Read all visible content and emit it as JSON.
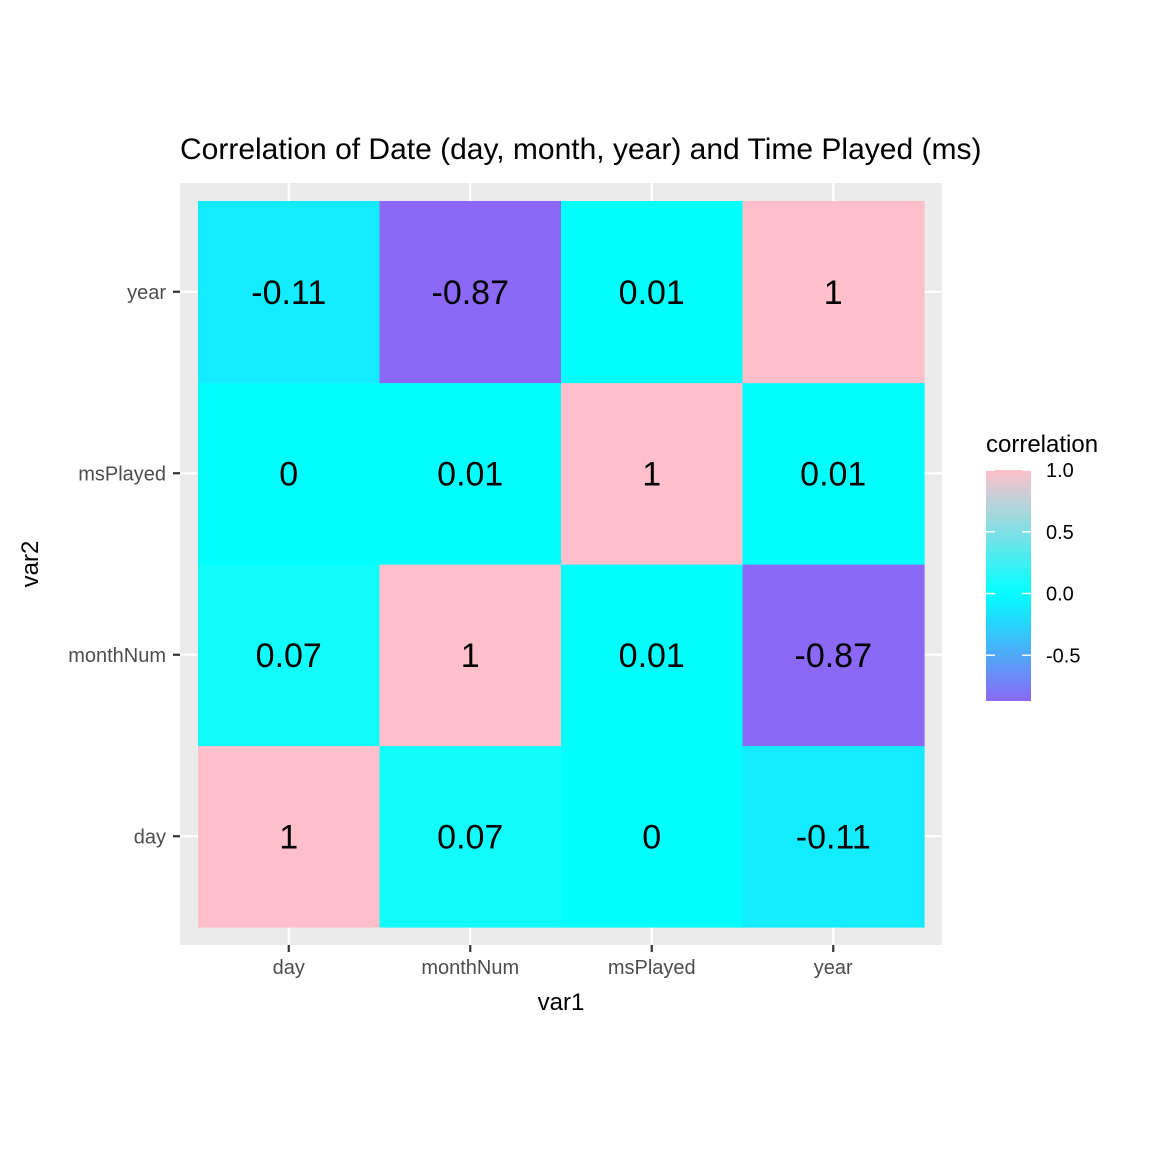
{
  "chart_data": {
    "type": "heatmap",
    "title": "Correlation of Date (day, month, year) and Time Played (ms)",
    "xlabel": "var1",
    "ylabel": "var2",
    "x_categories": [
      "day",
      "monthNum",
      "msPlayed",
      "year"
    ],
    "y_categories": [
      "day",
      "monthNum",
      "msPlayed",
      "year"
    ],
    "values": [
      [
        1,
        0.07,
        0,
        -0.11
      ],
      [
        0.07,
        1,
        0.01,
        -0.87
      ],
      [
        0,
        0.01,
        1,
        0.01
      ],
      [
        -0.11,
        -0.87,
        0.01,
        1
      ]
    ],
    "cell_labels": [
      [
        "1",
        "0.07",
        "0",
        "-0.11"
      ],
      [
        "0.07",
        "1",
        "0.01",
        "-0.87"
      ],
      [
        "0",
        "0.01",
        "1",
        "0.01"
      ],
      [
        "-0.11",
        "-0.87",
        "0.01",
        "1"
      ]
    ],
    "legend": {
      "title": "correlation",
      "placement": "right",
      "ticks": [
        {
          "value": 1.0,
          "label": "1.0"
        },
        {
          "value": 0.5,
          "label": "0.5"
        },
        {
          "value": 0.0,
          "label": "0.0"
        },
        {
          "value": -0.5,
          "label": "-0.5"
        }
      ],
      "range": [
        -0.87,
        1
      ]
    },
    "colors": {
      "low": "#A052F3",
      "mid": "#00FFFF",
      "high": "#FFC0CB",
      "mid_value": 0,
      "panel_background": "#EBEBEB",
      "grid": "#FFFFFF"
    },
    "grid": true
  }
}
